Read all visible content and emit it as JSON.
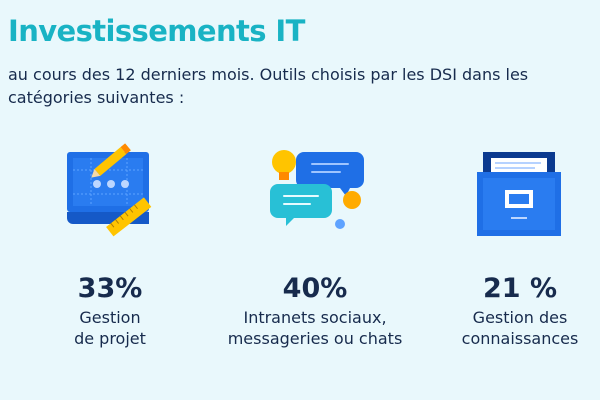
{
  "header": {
    "title": "Investissements IT",
    "subtitle": "au cours des 12 derniers mois. Outils choisis par les DSI dans les catégories suivantes :"
  },
  "stats": [
    {
      "value": "33%",
      "label_line1": "Gestion",
      "label_line2": "de projet",
      "icon": "project-board-icon"
    },
    {
      "value": "40%",
      "label_line1": "Intranets sociaux,",
      "label_line2": "messageries ou chats",
      "icon": "chat-bubbles-icon"
    },
    {
      "value": "21 %",
      "label_line1": "Gestion des",
      "label_line2": "connaissances",
      "icon": "file-drawer-icon"
    }
  ],
  "colors": {
    "background": "#e9f8fc",
    "title": "#19b3c4",
    "text": "#172b4d",
    "accent_blue": "#1f6fe6",
    "accent_yellow": "#ffc400"
  }
}
